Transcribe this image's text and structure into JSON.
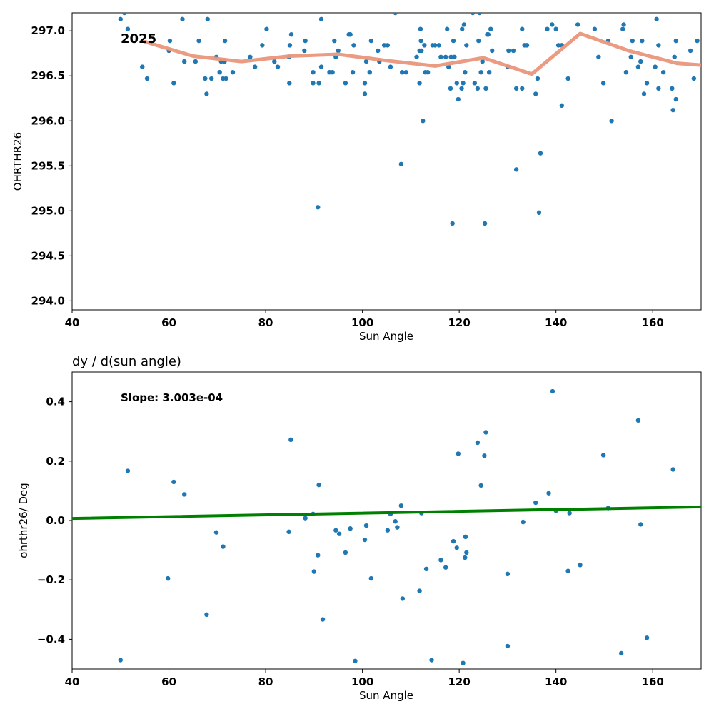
{
  "chart_data": [
    {
      "type": "scatter",
      "title": "",
      "annotation": "2025",
      "xlabel": "Sun Angle",
      "ylabel": "OHRTHR26",
      "xlim": [
        40,
        170
      ],
      "ylim": [
        293.9,
        297.2
      ],
      "xticks": [
        40,
        60,
        80,
        100,
        120,
        140,
        160
      ],
      "xtick_labels": [
        "40",
        "60",
        "80",
        "100",
        "120",
        "140",
        "160"
      ],
      "yticks": [
        294.0,
        294.5,
        295.0,
        295.5,
        296.0,
        296.5,
        297.0
      ],
      "ytick_labels": [
        "294.0",
        "294.5",
        "295.0",
        "295.5",
        "296.0",
        "296.5",
        "297.0"
      ],
      "grid": false,
      "colors": {
        "points": "#1f77b4",
        "trend": "#e9967a"
      },
      "series": [
        {
          "kind": "points",
          "points": [
            [
              50,
              297.13
            ],
            [
              50.8,
              297.2
            ],
            [
              51.5,
              297.02
            ],
            [
              54.5,
              296.6
            ],
            [
              55.5,
              296.47
            ],
            [
              60,
              296.78
            ],
            [
              60.2,
              296.89
            ],
            [
              61,
              296.42
            ],
            [
              62.8,
              297.13
            ],
            [
              63.2,
              296.66
            ],
            [
              65.5,
              296.66
            ],
            [
              66.2,
              296.89
            ],
            [
              67.5,
              296.47
            ],
            [
              67.8,
              296.3
            ],
            [
              68,
              297.13
            ],
            [
              68.8,
              296.47
            ],
            [
              69.8,
              296.71
            ],
            [
              70.5,
              296.54
            ],
            [
              70.8,
              296.66
            ],
            [
              71.2,
              296.47
            ],
            [
              71.5,
              296.66
            ],
            [
              71.6,
              296.89
            ],
            [
              71.8,
              296.47
            ],
            [
              73.2,
              296.54
            ],
            [
              76.8,
              296.71
            ],
            [
              77.8,
              296.6
            ],
            [
              79.3,
              296.84
            ],
            [
              80.2,
              297.02
            ],
            [
              81.8,
              296.66
            ],
            [
              82.5,
              296.6
            ],
            [
              84.8,
              296.71
            ],
            [
              84.9,
              296.42
            ],
            [
              85,
              296.84
            ],
            [
              85.3,
              296.96
            ],
            [
              88,
              296.78
            ],
            [
              88.2,
              296.89
            ],
            [
              89.8,
              296.54
            ],
            [
              89.8,
              296.42
            ],
            [
              90.8,
              295.04
            ],
            [
              91,
              296.42
            ],
            [
              91.5,
              297.13
            ],
            [
              91.5,
              296.6
            ],
            [
              93.2,
              296.54
            ],
            [
              93.8,
              296.54
            ],
            [
              94.2,
              296.89
            ],
            [
              94.5,
              296.71
            ],
            [
              95,
              296.78
            ],
            [
              96.5,
              296.42
            ],
            [
              97.2,
              296.96
            ],
            [
              97.5,
              296.96
            ],
            [
              98,
              296.54
            ],
            [
              98.2,
              296.84
            ],
            [
              100.5,
              296.42
            ],
            [
              100.5,
              296.3
            ],
            [
              100.8,
              296.66
            ],
            [
              101.5,
              296.54
            ],
            [
              101.8,
              296.89
            ],
            [
              103.2,
              296.78
            ],
            [
              103.5,
              296.66
            ],
            [
              104.5,
              296.84
            ],
            [
              105.2,
              296.84
            ],
            [
              105.8,
              296.6
            ],
            [
              106.8,
              297.2
            ],
            [
              108,
              295.52
            ],
            [
              108.2,
              296.54
            ],
            [
              109,
              296.54
            ],
            [
              111.2,
              296.71
            ],
            [
              111.8,
              296.78
            ],
            [
              111.8,
              296.42
            ],
            [
              112,
              297.02
            ],
            [
              112.1,
              296.89
            ],
            [
              112.2,
              296.78
            ],
            [
              112.5,
              296.0
            ],
            [
              112.8,
              296.84
            ],
            [
              113,
              296.54
            ],
            [
              113.5,
              296.54
            ],
            [
              114.5,
              296.84
            ],
            [
              115,
              296.84
            ],
            [
              115.8,
              296.84
            ],
            [
              116.2,
              296.71
            ],
            [
              117.2,
              296.71
            ],
            [
              117.5,
              297.02
            ],
            [
              117.8,
              296.6
            ],
            [
              118.2,
              296.36
            ],
            [
              118.3,
              296.71
            ],
            [
              118.6,
              294.86
            ],
            [
              118.8,
              296.89
            ],
            [
              119,
              296.71
            ],
            [
              119.5,
              296.42
            ],
            [
              119.8,
              296.24
            ],
            [
              120.5,
              296.36
            ],
            [
              120.6,
              297.02
            ],
            [
              120.8,
              296.42
            ],
            [
              121,
              297.07
            ],
            [
              121.2,
              296.54
            ],
            [
              121.5,
              296.84
            ],
            [
              122.8,
              297.2
            ],
            [
              123.2,
              296.42
            ],
            [
              123.8,
              296.36
            ],
            [
              124,
              296.89
            ],
            [
              124.2,
              297.2
            ],
            [
              124.5,
              296.54
            ],
            [
              124.8,
              296.66
            ],
            [
              125.3,
              294.86
            ],
            [
              125.5,
              296.36
            ],
            [
              125.8,
              296.96
            ],
            [
              126,
              296.96
            ],
            [
              126.2,
              296.54
            ],
            [
              126.5,
              297.02
            ],
            [
              126.8,
              296.78
            ],
            [
              130,
              296.6
            ],
            [
              130.2,
              296.78
            ],
            [
              131.2,
              296.78
            ],
            [
              131.8,
              296.36
            ],
            [
              131.8,
              295.46
            ],
            [
              133,
              297.02
            ],
            [
              133,
              296.36
            ],
            [
              133.5,
              296.84
            ],
            [
              134,
              296.84
            ],
            [
              135.8,
              296.3
            ],
            [
              136.2,
              296.47
            ],
            [
              136.5,
              294.98
            ],
            [
              136.8,
              295.64
            ],
            [
              138.2,
              297.02
            ],
            [
              139.2,
              297.07
            ],
            [
              140,
              297.02
            ],
            [
              140.5,
              296.84
            ],
            [
              141.2,
              296.17
            ],
            [
              141.2,
              296.84
            ],
            [
              142.5,
              296.47
            ],
            [
              144.5,
              297.07
            ],
            [
              148,
              297.02
            ],
            [
              148.8,
              296.71
            ],
            [
              149.8,
              296.42
            ],
            [
              150.8,
              296.89
            ],
            [
              151.5,
              296.0
            ],
            [
              153.8,
              297.02
            ],
            [
              154,
              297.07
            ],
            [
              154.5,
              296.54
            ],
            [
              155.5,
              296.71
            ],
            [
              155.8,
              296.89
            ],
            [
              157,
              296.6
            ],
            [
              157.5,
              296.66
            ],
            [
              157.8,
              296.89
            ],
            [
              158.2,
              296.3
            ],
            [
              158.8,
              296.42
            ],
            [
              160.5,
              296.6
            ],
            [
              160.8,
              297.13
            ],
            [
              161.2,
              296.84
            ],
            [
              161.2,
              296.36
            ],
            [
              162.2,
              296.54
            ],
            [
              164,
              296.36
            ],
            [
              164.2,
              296.12
            ],
            [
              164.5,
              296.71
            ],
            [
              164.8,
              296.24
            ],
            [
              164.8,
              296.89
            ],
            [
              167.8,
              296.78
            ],
            [
              168.5,
              296.47
            ],
            [
              169.2,
              296.89
            ]
          ]
        },
        {
          "kind": "line",
          "points": [
            [
              55,
              296.88
            ],
            [
              65,
              296.72
            ],
            [
              75,
              296.66
            ],
            [
              85,
              296.72
            ],
            [
              95,
              296.74
            ],
            [
              105,
              296.67
            ],
            [
              115,
              296.61
            ],
            [
              125,
              296.7
            ],
            [
              135,
              296.52
            ],
            [
              145,
              296.97
            ],
            [
              155,
              296.78
            ],
            [
              165,
              296.64
            ],
            [
              170,
              296.62
            ]
          ]
        }
      ]
    },
    {
      "type": "scatter",
      "title": "dy / d(sun angle)",
      "annotation": "Slope: 3.003e-04",
      "xlabel": "Sun Angle",
      "ylabel": "ohrthr26/ Deg",
      "xlim": [
        40,
        170
      ],
      "ylim": [
        -0.5,
        0.5
      ],
      "xticks": [
        40,
        60,
        80,
        100,
        120,
        140,
        160
      ],
      "xtick_labels": [
        "40",
        "60",
        "80",
        "100",
        "120",
        "140",
        "160"
      ],
      "yticks": [
        -0.4,
        -0.2,
        0.0,
        0.2,
        0.4
      ],
      "ytick_labels": [
        "−0.4",
        "−0.2",
        "0.0",
        "0.2",
        "0.4"
      ],
      "grid": false,
      "colors": {
        "points": "#1f77b4",
        "trend": "#008000"
      },
      "series": [
        {
          "kind": "points",
          "points": [
            [
              50,
              -0.47
            ],
            [
              51.5,
              0.167
            ],
            [
              59.8,
              -0.195
            ],
            [
              61,
              0.13
            ],
            [
              63.2,
              0.088
            ],
            [
              67.8,
              -0.317
            ],
            [
              69.8,
              -0.04
            ],
            [
              71.2,
              -0.088
            ],
            [
              84.8,
              -0.038
            ],
            [
              85.2,
              0.272
            ],
            [
              88.2,
              0.008
            ],
            [
              89.8,
              0.022
            ],
            [
              90,
              -0.172
            ],
            [
              90.8,
              -0.117
            ],
            [
              91,
              0.12
            ],
            [
              91.8,
              -0.333
            ],
            [
              94.5,
              -0.033
            ],
            [
              95.2,
              -0.045
            ],
            [
              96.5,
              -0.108
            ],
            [
              97.5,
              -0.027
            ],
            [
              98.5,
              -0.473
            ],
            [
              100.5,
              -0.065
            ],
            [
              100.8,
              -0.017
            ],
            [
              101.8,
              -0.195
            ],
            [
              105.2,
              -0.033
            ],
            [
              105.8,
              0.022
            ],
            [
              106.8,
              -0.003
            ],
            [
              107.2,
              -0.023
            ],
            [
              108,
              0.05
            ],
            [
              108.3,
              -0.263
            ],
            [
              111.8,
              -0.237
            ],
            [
              112.2,
              0.025
            ],
            [
              113.2,
              -0.163
            ],
            [
              114.3,
              -0.47
            ],
            [
              116.2,
              -0.133
            ],
            [
              117.2,
              -0.158
            ],
            [
              118.8,
              -0.07
            ],
            [
              119.5,
              -0.092
            ],
            [
              119.8,
              0.225
            ],
            [
              120.8,
              -0.48
            ],
            [
              121.2,
              -0.125
            ],
            [
              121.3,
              -0.055
            ],
            [
              121.5,
              -0.108
            ],
            [
              123.8,
              0.262
            ],
            [
              124.5,
              0.118
            ],
            [
              125.2,
              0.218
            ],
            [
              125.5,
              0.297
            ],
            [
              130,
              -0.18
            ],
            [
              130,
              -0.423
            ],
            [
              133.2,
              -0.005
            ],
            [
              135.8,
              0.06
            ],
            [
              138.5,
              0.092
            ],
            [
              139.3,
              0.435
            ],
            [
              140,
              0.033
            ],
            [
              142.5,
              -0.17
            ],
            [
              142.8,
              0.025
            ],
            [
              145,
              -0.15
            ],
            [
              149.8,
              0.22
            ],
            [
              150.8,
              0.042
            ],
            [
              153.5,
              -0.447
            ],
            [
              157,
              0.337
            ],
            [
              157.5,
              -0.013
            ],
            [
              158.8,
              -0.395
            ],
            [
              164.2,
              0.172
            ]
          ]
        },
        {
          "kind": "line",
          "points": [
            [
              40,
              0.007
            ],
            [
              170,
              0.046
            ]
          ]
        }
      ]
    }
  ]
}
